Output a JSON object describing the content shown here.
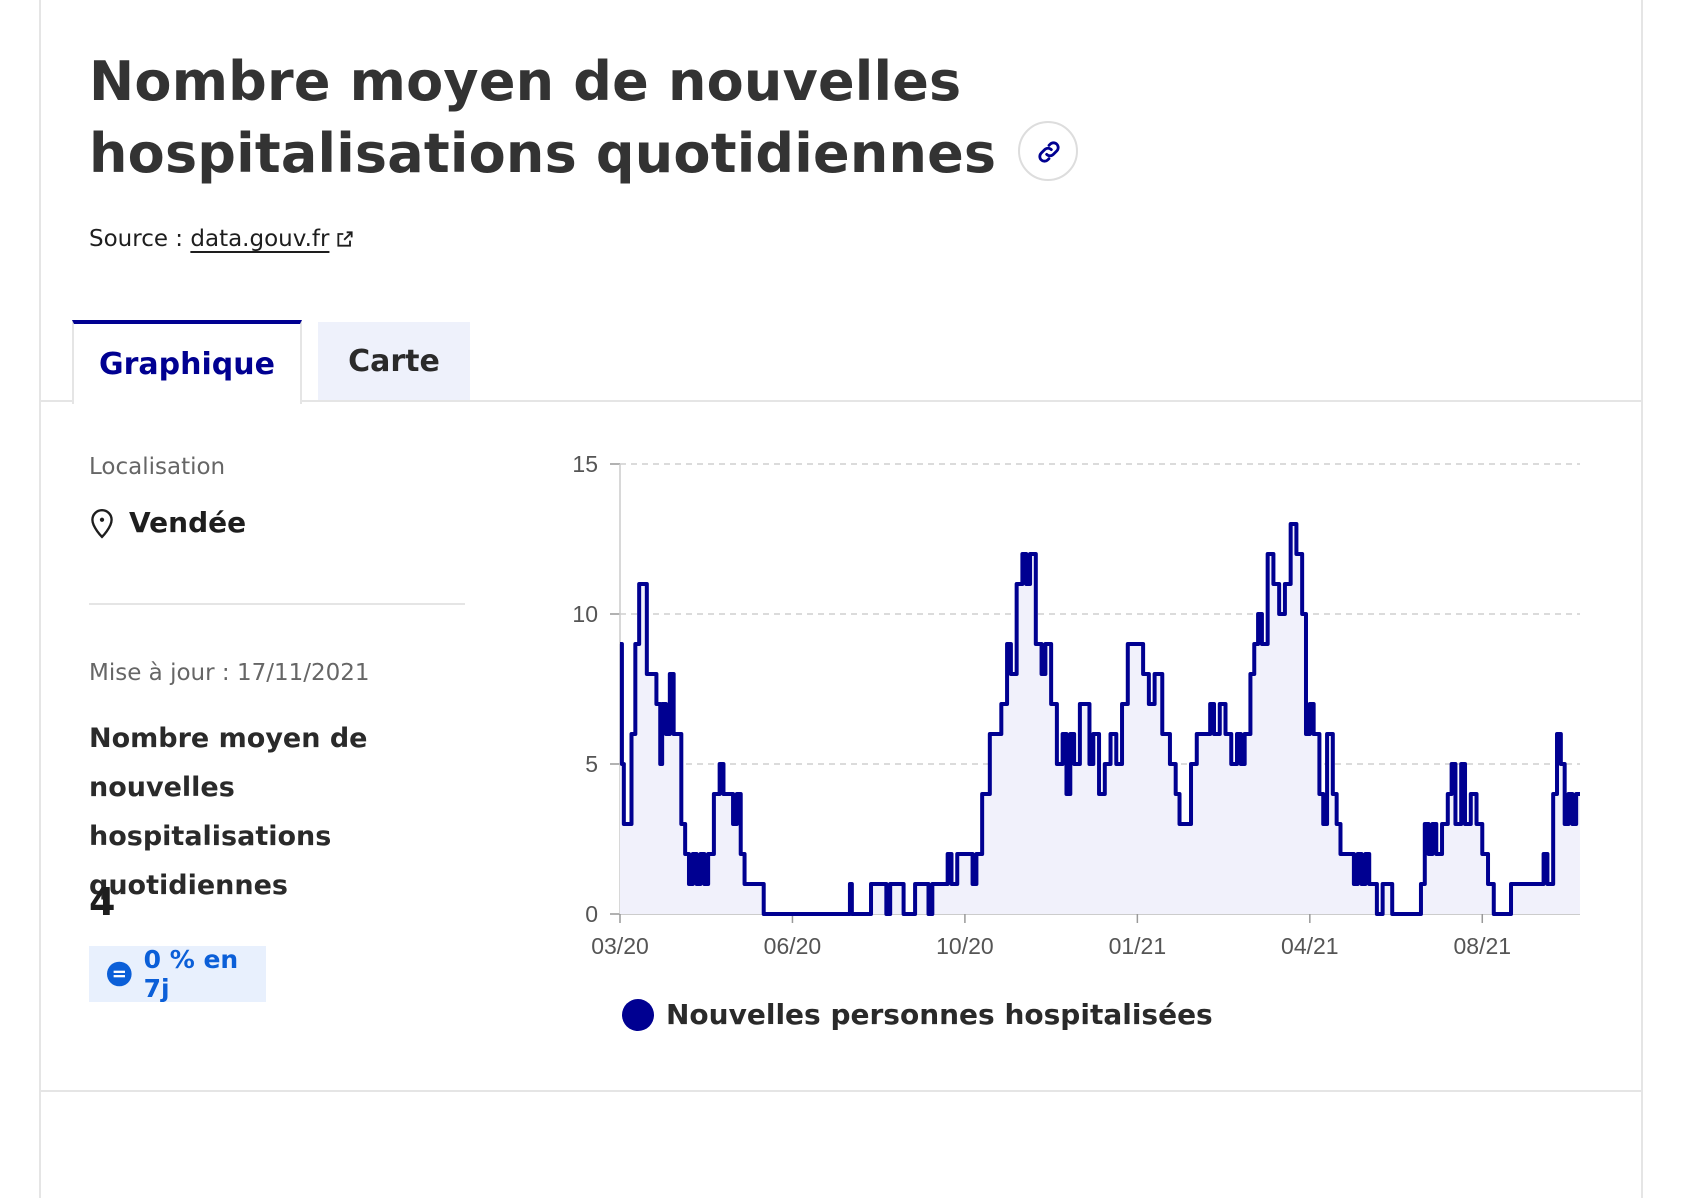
{
  "header": {
    "title": "Nombre moyen de nouvelles hospitalisations quotidiennes",
    "link_icon": "link-icon",
    "source_prefix": "Source :",
    "source_link": "data.gouv.fr",
    "external_icon": "external-link-icon"
  },
  "tabs": [
    {
      "label": "Graphique",
      "active": true
    },
    {
      "label": "Carte",
      "active": false
    }
  ],
  "sidebar": {
    "location_label": "Localisation",
    "location_icon": "location-pin-icon",
    "location_value": "Vendée",
    "update_text": "Mise à jour : 17/11/2021",
    "metric_label": "Nombre moyen de nouvelles hospitalisations quotidiennes",
    "metric_value": "4",
    "badge_icon": "equal-icon",
    "badge_text": "0 % en 7j"
  },
  "colors": {
    "primary": "#000091",
    "area_fill": "#f1f1fb",
    "badge_bg": "#e8f0fd",
    "badge_text": "#0b5fd8"
  },
  "chart_data": {
    "type": "line",
    "title": "",
    "xlabel": "",
    "ylabel": "",
    "ylim": [
      0,
      15
    ],
    "yticks": [
      0,
      5,
      10,
      15
    ],
    "xticks": [
      "03/20",
      "06/20",
      "10/20",
      "01/21",
      "04/21",
      "08/21"
    ],
    "grid": "horizontal dashed",
    "legend_position": "bottom",
    "series": [
      {
        "name": "Nouvelles personnes hospitalisées",
        "color": "#000091",
        "area": true,
        "points": [
          [
            "2020-03-18",
            9
          ],
          [
            "2020-03-19",
            5
          ],
          [
            "2020-03-20",
            3
          ],
          [
            "2020-03-22",
            3
          ],
          [
            "2020-03-24",
            6
          ],
          [
            "2020-03-26",
            9
          ],
          [
            "2020-03-28",
            11
          ],
          [
            "2020-03-30",
            11
          ],
          [
            "2020-04-01",
            8
          ],
          [
            "2020-04-04",
            8
          ],
          [
            "2020-04-06",
            7
          ],
          [
            "2020-04-08",
            5
          ],
          [
            "2020-04-09",
            7
          ],
          [
            "2020-04-11",
            6
          ],
          [
            "2020-04-13",
            8
          ],
          [
            "2020-04-15",
            6
          ],
          [
            "2020-04-17",
            6
          ],
          [
            "2020-04-19",
            3
          ],
          [
            "2020-04-21",
            2
          ],
          [
            "2020-04-23",
            1
          ],
          [
            "2020-04-25",
            2
          ],
          [
            "2020-04-27",
            1
          ],
          [
            "2020-04-29",
            2
          ],
          [
            "2020-05-01",
            1
          ],
          [
            "2020-05-03",
            2
          ],
          [
            "2020-05-06",
            4
          ],
          [
            "2020-05-09",
            5
          ],
          [
            "2020-05-11",
            4
          ],
          [
            "2020-05-14",
            4
          ],
          [
            "2020-05-16",
            3
          ],
          [
            "2020-05-18",
            4
          ],
          [
            "2020-05-20",
            2
          ],
          [
            "2020-05-22",
            1
          ],
          [
            "2020-05-28",
            1
          ],
          [
            "2020-06-01",
            0
          ],
          [
            "2020-07-15",
            0
          ],
          [
            "2020-07-16",
            1
          ],
          [
            "2020-07-17",
            0
          ],
          [
            "2020-07-25",
            0
          ],
          [
            "2020-07-27",
            1
          ],
          [
            "2020-08-04",
            0
          ],
          [
            "2020-08-06",
            1
          ],
          [
            "2020-08-12",
            1
          ],
          [
            "2020-08-13",
            0
          ],
          [
            "2020-08-19",
            1
          ],
          [
            "2020-08-26",
            0
          ],
          [
            "2020-08-28",
            1
          ],
          [
            "2020-09-05",
            2
          ],
          [
            "2020-09-07",
            1
          ],
          [
            "2020-09-10",
            2
          ],
          [
            "2020-09-18",
            1
          ],
          [
            "2020-09-20",
            2
          ],
          [
            "2020-09-23",
            4
          ],
          [
            "2020-09-27",
            6
          ],
          [
            "2020-10-03",
            7
          ],
          [
            "2020-10-06",
            9
          ],
          [
            "2020-10-08",
            8
          ],
          [
            "2020-10-11",
            11
          ],
          [
            "2020-10-14",
            12
          ],
          [
            "2020-10-16",
            11
          ],
          [
            "2020-10-18",
            12
          ],
          [
            "2020-10-21",
            9
          ],
          [
            "2020-10-24",
            8
          ],
          [
            "2020-10-26",
            9
          ],
          [
            "2020-10-29",
            7
          ],
          [
            "2020-11-01",
            5
          ],
          [
            "2020-11-04",
            6
          ],
          [
            "2020-11-06",
            4
          ],
          [
            "2020-11-08",
            6
          ],
          [
            "2020-11-10",
            5
          ],
          [
            "2020-11-13",
            7
          ],
          [
            "2020-11-16",
            7
          ],
          [
            "2020-11-18",
            5
          ],
          [
            "2020-11-20",
            6
          ],
          [
            "2020-11-23",
            4
          ],
          [
            "2020-11-26",
            5
          ],
          [
            "2020-11-29",
            6
          ],
          [
            "2020-12-02",
            5
          ],
          [
            "2020-12-05",
            7
          ],
          [
            "2020-12-08",
            9
          ],
          [
            "2020-12-13",
            9
          ],
          [
            "2020-12-16",
            8
          ],
          [
            "2020-12-19",
            7
          ],
          [
            "2020-12-22",
            8
          ],
          [
            "2020-12-26",
            6
          ],
          [
            "2020-12-30",
            5
          ],
          [
            "2021-01-02",
            4
          ],
          [
            "2021-01-04",
            3
          ],
          [
            "2021-01-08",
            3
          ],
          [
            "2021-01-10",
            5
          ],
          [
            "2021-01-13",
            6
          ],
          [
            "2021-01-18",
            6
          ],
          [
            "2021-01-20",
            7
          ],
          [
            "2021-01-22",
            6
          ],
          [
            "2021-01-25",
            7
          ],
          [
            "2021-01-28",
            6
          ],
          [
            "2021-01-31",
            5
          ],
          [
            "2021-02-03",
            6
          ],
          [
            "2021-02-05",
            5
          ],
          [
            "2021-02-07",
            6
          ],
          [
            "2021-02-10",
            8
          ],
          [
            "2021-02-12",
            9
          ],
          [
            "2021-02-14",
            10
          ],
          [
            "2021-02-16",
            9
          ],
          [
            "2021-02-19",
            12
          ],
          [
            "2021-02-22",
            11
          ],
          [
            "2021-02-25",
            10
          ],
          [
            "2021-02-28",
            11
          ],
          [
            "2021-03-03",
            13
          ],
          [
            "2021-03-06",
            12
          ],
          [
            "2021-03-09",
            10
          ],
          [
            "2021-03-11",
            6
          ],
          [
            "2021-03-13",
            7
          ],
          [
            "2021-03-15",
            6
          ],
          [
            "2021-03-18",
            4
          ],
          [
            "2021-03-20",
            3
          ],
          [
            "2021-03-22",
            6
          ],
          [
            "2021-03-25",
            4
          ],
          [
            "2021-03-27",
            3
          ],
          [
            "2021-03-29",
            2
          ],
          [
            "2021-04-05",
            1
          ],
          [
            "2021-04-07",
            2
          ],
          [
            "2021-04-09",
            1
          ],
          [
            "2021-04-11",
            2
          ],
          [
            "2021-04-13",
            1
          ],
          [
            "2021-04-17",
            0
          ],
          [
            "2021-04-20",
            1
          ],
          [
            "2021-04-25",
            0
          ],
          [
            "2021-05-10",
            1
          ],
          [
            "2021-05-12",
            3
          ],
          [
            "2021-05-14",
            2
          ],
          [
            "2021-05-16",
            3
          ],
          [
            "2021-05-18",
            2
          ],
          [
            "2021-05-21",
            3
          ],
          [
            "2021-05-24",
            4
          ],
          [
            "2021-05-26",
            5
          ],
          [
            "2021-05-28",
            3
          ],
          [
            "2021-05-31",
            5
          ],
          [
            "2021-06-02",
            3
          ],
          [
            "2021-06-05",
            4
          ],
          [
            "2021-06-08",
            3
          ],
          [
            "2021-06-11",
            2
          ],
          [
            "2021-06-14",
            1
          ],
          [
            "2021-06-17",
            0
          ],
          [
            "2021-06-26",
            1
          ],
          [
            "2021-07-10",
            1
          ],
          [
            "2021-07-13",
            2
          ],
          [
            "2021-07-15",
            1
          ],
          [
            "2021-07-18",
            4
          ],
          [
            "2021-07-20",
            6
          ],
          [
            "2021-07-22",
            5
          ],
          [
            "2021-07-24",
            3
          ],
          [
            "2021-07-26",
            4
          ],
          [
            "2021-07-28",
            3
          ],
          [
            "2021-07-30",
            4
          ],
          [
            "2021-08-01",
            4
          ]
        ]
      }
    ]
  },
  "legend": {
    "label": "Nouvelles personnes hospitalisées"
  }
}
